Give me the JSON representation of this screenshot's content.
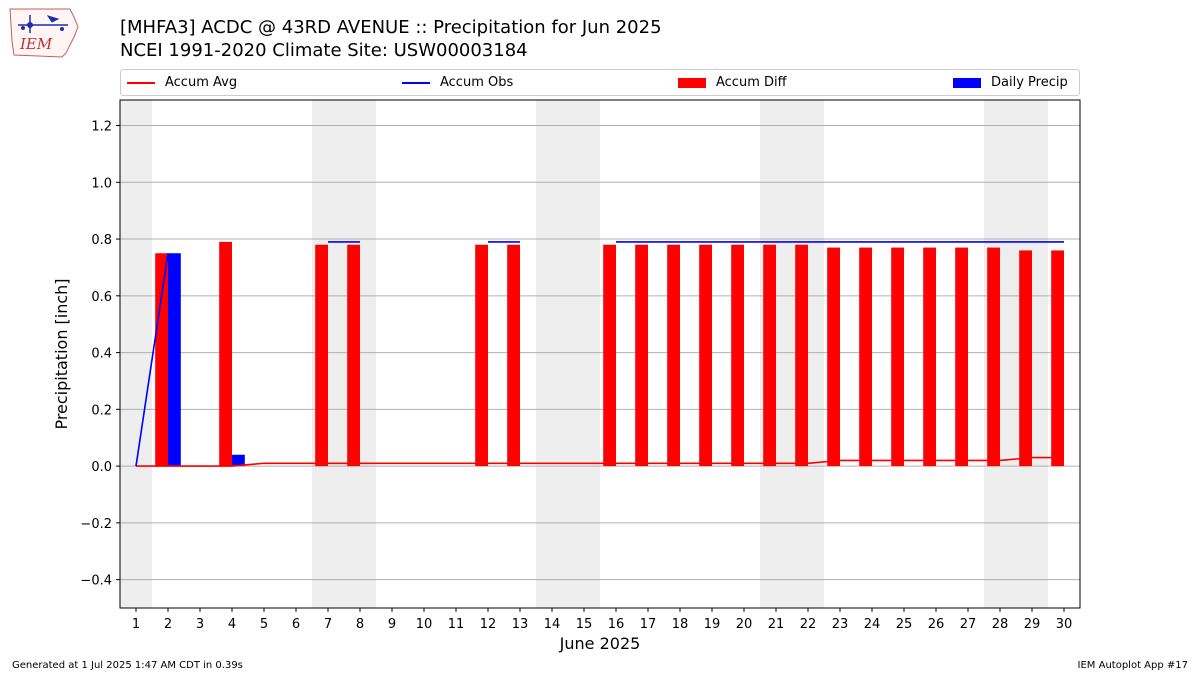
{
  "title_line1": "[MHFA3] ACDC @ 43RD AVENUE :: Precipitation for Jun 2025",
  "title_line2": "NCEI 1991-2020 Climate Site: USW00003184",
  "logo_text": "IEM",
  "footer_left": "Generated at 1 Jul 2025 1:47 AM CDT in 0.39s",
  "footer_right": "IEM Autoplot App #17",
  "legend": {
    "accum_avg": "Accum Avg",
    "accum_obs": "Accum Obs",
    "accum_diff": "Accum Diff",
    "daily_precip": "Daily Precip"
  },
  "colors": {
    "accum_avg": "#ff0000",
    "accum_obs": "#0000ff",
    "accum_diff": "#ff0000",
    "daily_precip": "#0000ff",
    "weekend_shade": "#eeeeee",
    "grid": "#b0b0b0"
  },
  "chart_data": {
    "type": "bar",
    "xlabel": "June 2025",
    "ylabel": "Precipitation [inch]",
    "xlim": [
      0.5,
      30.5
    ],
    "ylim": [
      -0.5,
      1.29
    ],
    "yticks": [
      -0.4,
      -0.2,
      0.0,
      0.2,
      0.4,
      0.6,
      0.8,
      1.0,
      1.2
    ],
    "ytick_labels": [
      "−0.4",
      "−0.2",
      "0.0",
      "0.2",
      "0.4",
      "0.6",
      "0.8",
      "1.0",
      "1.2"
    ],
    "x": [
      1,
      2,
      3,
      4,
      5,
      6,
      7,
      8,
      9,
      10,
      11,
      12,
      13,
      14,
      15,
      16,
      17,
      18,
      19,
      20,
      21,
      22,
      23,
      24,
      25,
      26,
      27,
      28,
      29,
      30
    ],
    "xtick_labels": [
      "1",
      "2",
      "3",
      "4",
      "5",
      "6",
      "7",
      "8",
      "9",
      "10",
      "11",
      "12",
      "13",
      "14",
      "15",
      "16",
      "17",
      "18",
      "19",
      "20",
      "21",
      "22",
      "23",
      "24",
      "25",
      "26",
      "27",
      "28",
      "29",
      "30"
    ],
    "shaded_days": [
      [
        1,
        1
      ],
      [
        7,
        8
      ],
      [
        14,
        15
      ],
      [
        21,
        22
      ],
      [
        28,
        29
      ]
    ],
    "grid": "horizontal",
    "legend_position": "top",
    "series": [
      {
        "name": "Accum Avg",
        "kind": "line",
        "values": [
          0,
          0,
          0,
          0,
          0.01,
          0.01,
          0.01,
          0.01,
          0.01,
          0.01,
          0.01,
          0.01,
          0.01,
          0.01,
          0.01,
          0.01,
          0.01,
          0.01,
          0.01,
          0.01,
          0.01,
          0.01,
          0.02,
          0.02,
          0.02,
          0.02,
          0.02,
          0.02,
          0.03,
          0.03
        ]
      },
      {
        "name": "Accum Obs",
        "kind": "line",
        "values": [
          0,
          0.75,
          null,
          0.79,
          null,
          null,
          0.79,
          0.79,
          null,
          null,
          null,
          0.79,
          0.79,
          null,
          null,
          0.79,
          0.79,
          0.79,
          0.79,
          0.79,
          0.79,
          0.79,
          0.79,
          0.79,
          0.79,
          0.79,
          0.79,
          0.79,
          0.79,
          0.79
        ]
      },
      {
        "name": "Accum Diff",
        "kind": "bar",
        "values": [
          0,
          0.75,
          null,
          0.79,
          null,
          null,
          0.78,
          0.78,
          null,
          null,
          null,
          0.78,
          0.78,
          null,
          null,
          0.78,
          0.78,
          0.78,
          0.78,
          0.78,
          0.78,
          0.78,
          0.77,
          0.77,
          0.77,
          0.77,
          0.77,
          0.77,
          0.76,
          0.76
        ]
      },
      {
        "name": "Daily Precip",
        "kind": "bar",
        "values": [
          0,
          0.75,
          null,
          0.04,
          null,
          null,
          0,
          0,
          null,
          null,
          null,
          0,
          0,
          null,
          null,
          0,
          0,
          0,
          0,
          0,
          0,
          0,
          0,
          0,
          0,
          0,
          0,
          0,
          0,
          0
        ]
      }
    ]
  }
}
